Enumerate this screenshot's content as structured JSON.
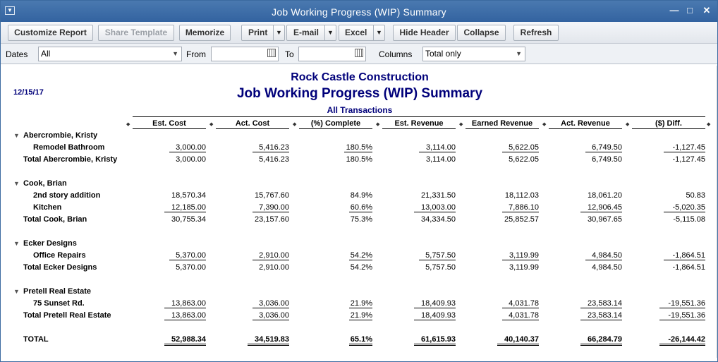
{
  "window": {
    "title": "Job Working Progress (WIP) Summary"
  },
  "toolbar": {
    "customize": "Customize Report",
    "share": "Share Template",
    "memorize": "Memorize",
    "print": "Print",
    "email": "E-mail",
    "excel": "Excel",
    "hide_header": "Hide Header",
    "collapse": "Collapse",
    "refresh": "Refresh"
  },
  "filters": {
    "dates_label": "Dates",
    "dates_value": "All",
    "from_label": "From",
    "from_value": "",
    "to_label": "To",
    "to_value": "",
    "columns_label": "Columns",
    "columns_value": "Total only"
  },
  "report": {
    "company": "Rock Castle Construction",
    "title": "Job Working Progress (WIP) Summary",
    "subtitle": "All Transactions",
    "date": "12/15/17",
    "columns": [
      "Est. Cost",
      "Act. Cost",
      "(%) Complete",
      "Est. Revenue",
      "Earned Revenue",
      "Act. Revenue",
      "($) Diff."
    ],
    "rows": [
      {
        "type": "group",
        "label": "Abercrombie, Kristy"
      },
      {
        "type": "item",
        "label": "Remodel Bathroom",
        "values": [
          "3,000.00",
          "5,416.23",
          "180.5%",
          "3,114.00",
          "5,622.05",
          "6,749.50",
          "-1,127.45"
        ]
      },
      {
        "type": "total",
        "label": "Total Abercrombie, Kristy",
        "values": [
          "3,000.00",
          "5,416.23",
          "180.5%",
          "3,114.00",
          "5,622.05",
          "6,749.50",
          "-1,127.45"
        ]
      },
      {
        "type": "group",
        "label": "Cook, Brian"
      },
      {
        "type": "item",
        "label": "2nd story addition",
        "values": [
          "18,570.34",
          "15,767.60",
          "84.9%",
          "21,331.50",
          "18,112.03",
          "18,061.20",
          "50.83"
        ]
      },
      {
        "type": "item",
        "label": "Kitchen",
        "values": [
          "12,185.00",
          "7,390.00",
          "60.6%",
          "13,003.00",
          "7,886.10",
          "12,906.45",
          "-5,020.35"
        ]
      },
      {
        "type": "total",
        "label": "Total Cook, Brian",
        "values": [
          "30,755.34",
          "23,157.60",
          "75.3%",
          "34,334.50",
          "25,852.57",
          "30,967.65",
          "-5,115.08"
        ]
      },
      {
        "type": "group",
        "label": "Ecker Designs"
      },
      {
        "type": "item",
        "label": "Office Repairs",
        "values": [
          "5,370.00",
          "2,910.00",
          "54.2%",
          "5,757.50",
          "3,119.99",
          "4,984.50",
          "-1,864.51"
        ]
      },
      {
        "type": "total",
        "label": "Total Ecker Designs",
        "values": [
          "5,370.00",
          "2,910.00",
          "54.2%",
          "5,757.50",
          "3,119.99",
          "4,984.50",
          "-1,864.51"
        ]
      },
      {
        "type": "group",
        "label": "Pretell Real Estate"
      },
      {
        "type": "item",
        "label": "75 Sunset Rd.",
        "values": [
          "13,863.00",
          "3,036.00",
          "21.9%",
          "18,409.93",
          "4,031.78",
          "23,583.14",
          "-19,551.36"
        ]
      },
      {
        "type": "total",
        "label": "Total Pretell Real Estate",
        "values": [
          "13,863.00",
          "3,036.00",
          "21.9%",
          "18,409.93",
          "4,031.78",
          "23,583.14",
          "-19,551.36"
        ]
      },
      {
        "type": "grand",
        "label": "TOTAL",
        "values": [
          "52,988.34",
          "34,519.83",
          "65.1%",
          "61,615.93",
          "40,140.37",
          "66,284.79",
          "-26,144.42"
        ]
      }
    ]
  }
}
